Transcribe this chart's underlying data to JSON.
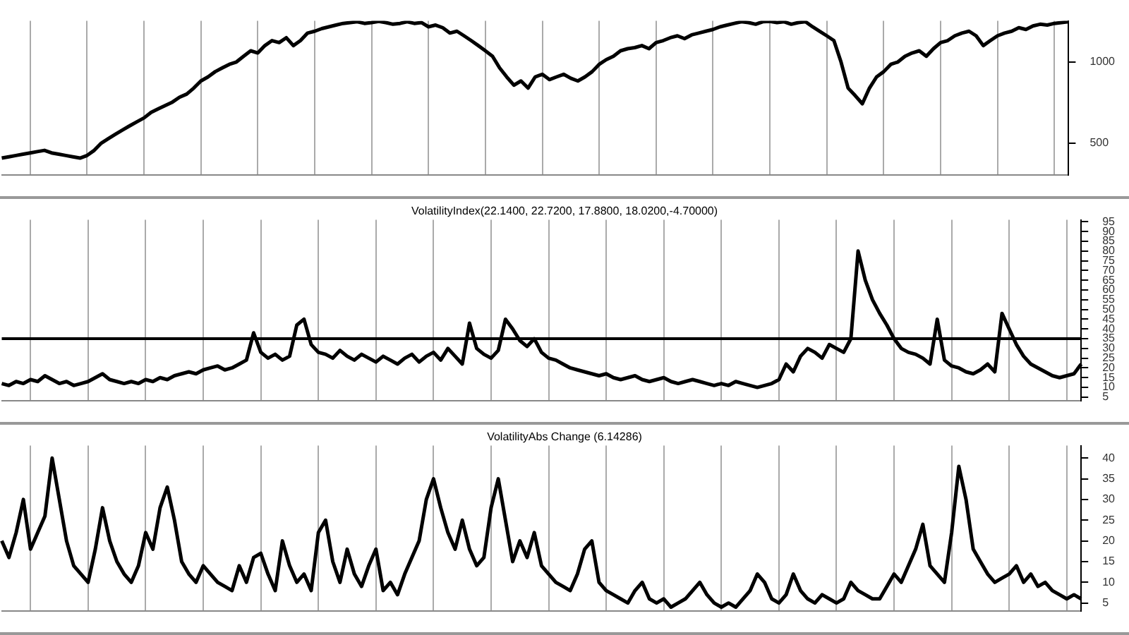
{
  "chart_data": [
    {
      "type": "line",
      "categories": [
        null,
        null,
        null,
        null,
        null,
        null,
        null,
        null,
        null,
        null,
        null,
        null,
        null,
        null,
        null,
        null,
        null,
        null,
        null,
        null,
        null,
        null,
        null,
        null,
        null,
        null,
        null,
        null,
        null,
        null,
        null,
        null,
        null,
        null,
        null,
        null,
        null,
        null,
        null,
        null,
        null,
        null,
        null,
        null,
        null,
        null,
        null,
        null,
        null,
        null,
        null,
        null,
        null,
        null,
        null,
        null,
        null,
        null,
        null,
        null,
        null,
        null,
        null,
        null,
        null,
        null,
        null,
        null,
        null,
        null,
        null,
        null,
        null,
        null,
        null,
        null,
        null,
        null,
        null,
        null,
        null,
        null,
        null,
        null,
        null,
        null,
        null,
        null,
        null,
        null,
        null,
        null,
        null,
        null,
        null,
        null,
        null,
        null,
        null,
        null,
        null,
        null,
        null,
        null,
        null,
        null,
        null,
        null,
        null,
        null,
        null,
        null,
        null,
        null,
        null,
        null,
        null,
        null,
        null,
        null,
        null,
        null,
        null,
        null,
        null,
        null,
        null,
        null,
        null,
        null,
        null,
        null,
        null,
        null,
        null,
        null,
        null,
        null,
        null,
        null,
        null,
        null,
        null,
        null,
        null,
        null,
        null,
        null,
        null,
        null,
        null
      ],
      "series": [
        {
          "color": "#000000",
          "values": [
            440,
            445,
            450,
            455,
            460,
            465,
            470,
            460,
            455,
            450,
            445,
            440,
            450,
            470,
            500,
            520,
            540,
            560,
            580,
            600,
            620,
            650,
            670,
            690,
            710,
            740,
            760,
            800,
            850,
            880,
            920,
            950,
            980,
            1000,
            1050,
            1100,
            1080,
            1150,
            1200,
            1180,
            1230,
            1150,
            1200,
            1280,
            1300,
            1330,
            1350,
            1370,
            1390,
            1400,
            1410,
            1390,
            1400,
            1415,
            1400,
            1380,
            1390,
            1410,
            1390,
            1400,
            1350,
            1370,
            1340,
            1280,
            1300,
            1250,
            1200,
            1150,
            1100,
            1050,
            950,
            880,
            820,
            850,
            800,
            880,
            900,
            860,
            880,
            900,
            870,
            850,
            880,
            920,
            980,
            1020,
            1050,
            1100,
            1120,
            1130,
            1150,
            1120,
            1180,
            1200,
            1230,
            1250,
            1220,
            1260,
            1280,
            1300,
            1320,
            1350,
            1370,
            1390,
            1410,
            1400,
            1380,
            1410,
            1415,
            1400,
            1410,
            1380,
            1400,
            1410,
            1350,
            1300,
            1250,
            1200,
            1000,
            800,
            750,
            700,
            800,
            880,
            920,
            980,
            1000,
            1050,
            1080,
            1100,
            1050,
            1120,
            1180,
            1200,
            1250,
            1280,
            1300,
            1250,
            1150,
            1200,
            1250,
            1280,
            1300,
            1340,
            1320,
            1360,
            1380,
            1370,
            1390,
            1400,
            1410
          ]
        }
      ],
      "log": "y",
      "ylim": [
        380,
        1420
      ],
      "yticks": [
        500,
        1000
      ],
      "grid": "x",
      "tick_labels": "y",
      "legend": false
    },
    {
      "type": "line",
      "title": "VolatilityIndex(22.1400, 22.7200, 17.8800, 18.0200,-4.70000)",
      "categories": [
        null,
        null,
        null,
        null,
        null,
        null,
        null,
        null,
        null,
        null,
        null,
        null,
        null,
        null,
        null,
        null,
        null,
        null,
        null,
        null,
        null,
        null,
        null,
        null,
        null,
        null,
        null,
        null,
        null,
        null,
        null,
        null,
        null,
        null,
        null,
        null,
        null,
        null,
        null,
        null,
        null,
        null,
        null,
        null,
        null,
        null,
        null,
        null,
        null,
        null,
        null,
        null,
        null,
        null,
        null,
        null,
        null,
        null,
        null,
        null,
        null,
        null,
        null,
        null,
        null,
        null,
        null,
        null,
        null,
        null,
        null,
        null,
        null,
        null,
        null,
        null,
        null,
        null,
        null,
        null,
        null,
        null,
        null,
        null,
        null,
        null,
        null,
        null,
        null,
        null,
        null,
        null,
        null,
        null,
        null,
        null,
        null,
        null,
        null,
        null,
        null,
        null,
        null,
        null,
        null,
        null,
        null,
        null,
        null,
        null,
        null,
        null,
        null,
        null,
        null,
        null,
        null,
        null,
        null,
        null,
        null,
        null,
        null,
        null,
        null,
        null,
        null,
        null,
        null,
        null,
        null,
        null,
        null,
        null,
        null,
        null,
        null,
        null,
        null,
        null,
        null,
        null,
        null,
        null,
        null,
        null,
        null,
        null,
        null,
        null,
        null
      ],
      "series": [
        {
          "color": "#000000",
          "values": [
            12,
            11,
            13,
            12,
            14,
            13,
            16,
            14,
            12,
            13,
            11,
            12,
            13,
            15,
            17,
            14,
            13,
            12,
            13,
            12,
            14,
            13,
            15,
            14,
            16,
            17,
            18,
            17,
            19,
            20,
            21,
            19,
            20,
            22,
            24,
            38,
            28,
            25,
            27,
            24,
            26,
            42,
            45,
            32,
            28,
            27,
            25,
            29,
            26,
            24,
            27,
            25,
            23,
            26,
            24,
            22,
            25,
            27,
            23,
            26,
            28,
            24,
            30,
            26,
            22,
            43,
            30,
            27,
            25,
            29,
            45,
            40,
            34,
            31,
            35,
            28,
            25,
            24,
            22,
            20,
            19,
            18,
            17,
            16,
            17,
            15,
            14,
            15,
            16,
            14,
            13,
            14,
            15,
            13,
            12,
            13,
            14,
            13,
            12,
            11,
            12,
            11,
            13,
            12,
            11,
            10,
            11,
            12,
            14,
            22,
            18,
            26,
            30,
            28,
            25,
            32,
            30,
            28,
            35,
            80,
            65,
            55,
            48,
            42,
            35,
            30,
            28,
            27,
            25,
            22,
            45,
            24,
            21,
            20,
            18,
            17,
            19,
            22,
            18,
            48,
            40,
            32,
            26,
            22,
            20,
            18,
            16,
            15,
            16,
            17,
            22
          ]
        }
      ],
      "ylim": [
        3,
        96
      ],
      "yticks": [
        5,
        10,
        15,
        20,
        25,
        30,
        35,
        40,
        45,
        50,
        55,
        60,
        65,
        70,
        75,
        80,
        85,
        90,
        95
      ],
      "grid": "x",
      "tick_labels": "y",
      "legend": false,
      "ref_lines": [
        {
          "axis": "y",
          "value": 35,
          "color": "#000000"
        }
      ]
    },
    {
      "type": "line",
      "title": "VolatilityAbs Change (6.14286)",
      "categories": [
        null,
        null,
        null,
        null,
        null,
        null,
        null,
        null,
        null,
        null,
        null,
        null,
        null,
        null,
        null,
        null,
        null,
        null,
        null,
        null,
        null,
        null,
        null,
        null,
        null,
        null,
        null,
        null,
        null,
        null,
        null,
        null,
        null,
        null,
        null,
        null,
        null,
        null,
        null,
        null,
        null,
        null,
        null,
        null,
        null,
        null,
        null,
        null,
        null,
        null,
        null,
        null,
        null,
        null,
        null,
        null,
        null,
        null,
        null,
        null,
        null,
        null,
        null,
        null,
        null,
        null,
        null,
        null,
        null,
        null,
        null,
        null,
        null,
        null,
        null,
        null,
        null,
        null,
        null,
        null,
        null,
        null,
        null,
        null,
        null,
        null,
        null,
        null,
        null,
        null,
        null,
        null,
        null,
        null,
        null,
        null,
        null,
        null,
        null,
        null,
        null,
        null,
        null,
        null,
        null,
        null,
        null,
        null,
        null,
        null,
        null,
        null,
        null,
        null,
        null,
        null,
        null,
        null,
        null,
        null,
        null,
        null,
        null,
        null,
        null,
        null,
        null,
        null,
        null,
        null,
        null,
        null,
        null,
        null,
        null,
        null,
        null,
        null,
        null,
        null,
        null,
        null,
        null,
        null,
        null,
        null,
        null,
        null,
        null,
        null,
        null
      ],
      "series": [
        {
          "color": "#000000",
          "values": [
            20,
            16,
            22,
            30,
            18,
            22,
            26,
            40,
            30,
            20,
            14,
            12,
            10,
            18,
            28,
            20,
            15,
            12,
            10,
            14,
            22,
            18,
            28,
            33,
            25,
            15,
            12,
            10,
            14,
            12,
            10,
            9,
            8,
            14,
            10,
            16,
            17,
            12,
            8,
            20,
            14,
            10,
            12,
            8,
            22,
            25,
            15,
            10,
            18,
            12,
            9,
            14,
            18,
            8,
            10,
            7,
            12,
            16,
            20,
            30,
            35,
            28,
            22,
            18,
            25,
            18,
            14,
            16,
            28,
            35,
            25,
            15,
            20,
            16,
            22,
            14,
            12,
            10,
            9,
            8,
            12,
            18,
            20,
            10,
            8,
            7,
            6,
            5,
            8,
            10,
            6,
            5,
            6,
            4,
            5,
            6,
            8,
            10,
            7,
            5,
            4,
            5,
            4,
            6,
            8,
            12,
            10,
            6,
            5,
            7,
            12,
            8,
            6,
            5,
            7,
            6,
            5,
            6,
            10,
            8,
            7,
            6,
            6,
            9,
            12,
            10,
            14,
            18,
            24,
            14,
            12,
            10,
            22,
            38,
            30,
            18,
            15,
            12,
            10,
            11,
            12,
            14,
            10,
            12,
            9,
            10,
            8,
            7,
            6,
            7,
            6
          ]
        }
      ],
      "ylim": [
        3,
        43
      ],
      "yticks": [
        5,
        10,
        15,
        20,
        25,
        30,
        35,
        40
      ],
      "grid": "x",
      "tick_labels": "y",
      "legend": false
    }
  ]
}
